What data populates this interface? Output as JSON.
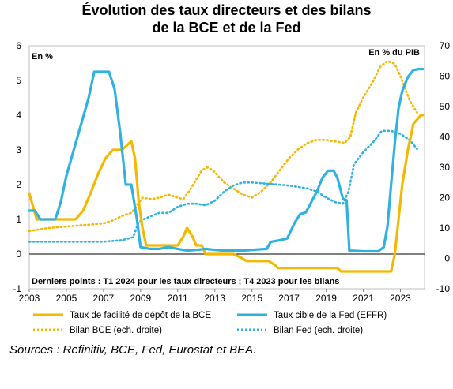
{
  "chart_data": {
    "type": "line",
    "title_line1": "Évolution des taux directeurs et des bilans",
    "title_line2": "de la BCE et de la Fed",
    "left_unit": "En %",
    "right_unit": "En % du PIB",
    "note": "Derniers points : T1 2024 pour les taux directeurs ; T4 2023 pour les bilans",
    "xlim": [
      2003,
      2024.3
    ],
    "ylim_left": [
      -1,
      6
    ],
    "ylim_right": [
      -10,
      70
    ],
    "x_ticks": [
      "2003",
      "2005",
      "2007",
      "2009",
      "2011",
      "2013",
      "2015",
      "2017",
      "2019",
      "2021",
      "2023"
    ],
    "y_left_ticks": [
      "-1",
      "0",
      "1",
      "2",
      "3",
      "4",
      "5",
      "6"
    ],
    "y_right_ticks": [
      "-10",
      "0",
      "10",
      "20",
      "30",
      "40",
      "50",
      "60",
      "70"
    ],
    "grid": false,
    "legend_position": "bottom",
    "series": [
      {
        "name": "Taux de facilité de dépôt de la BCE",
        "axis": "left",
        "style": "solid",
        "color": "#F5B800",
        "points": [
          [
            2003.0,
            1.75
          ],
          [
            2003.4,
            1.0
          ],
          [
            2004.5,
            1.0
          ],
          [
            2005.5,
            1.0
          ],
          [
            2005.9,
            1.25
          ],
          [
            2006.3,
            1.75
          ],
          [
            2006.7,
            2.3
          ],
          [
            2007.1,
            2.75
          ],
          [
            2007.5,
            3.0
          ],
          [
            2008.0,
            3.0
          ],
          [
            2008.5,
            3.25
          ],
          [
            2008.7,
            2.75
          ],
          [
            2008.9,
            1.5
          ],
          [
            2009.1,
            0.75
          ],
          [
            2009.3,
            0.25
          ],
          [
            2010.0,
            0.25
          ],
          [
            2011.0,
            0.25
          ],
          [
            2011.3,
            0.5
          ],
          [
            2011.5,
            0.75
          ],
          [
            2011.8,
            0.5
          ],
          [
            2012.0,
            0.25
          ],
          [
            2012.3,
            0.25
          ],
          [
            2012.5,
            0.0
          ],
          [
            2014.0,
            0.0
          ],
          [
            2014.4,
            -0.1
          ],
          [
            2014.7,
            -0.2
          ],
          [
            2015.9,
            -0.2
          ],
          [
            2016.2,
            -0.3
          ],
          [
            2016.4,
            -0.4
          ],
          [
            2019.6,
            -0.4
          ],
          [
            2019.8,
            -0.5
          ],
          [
            2022.5,
            -0.5
          ],
          [
            2022.7,
            0.0
          ],
          [
            2022.9,
            1.0
          ],
          [
            2023.1,
            2.0
          ],
          [
            2023.4,
            3.0
          ],
          [
            2023.7,
            3.75
          ],
          [
            2024.1,
            4.0
          ],
          [
            2024.2,
            4.0
          ]
        ]
      },
      {
        "name": "Taux cible de la Fed (EFFR)",
        "axis": "left",
        "style": "solid",
        "color": "#2FB2E2",
        "points": [
          [
            2003.0,
            1.25
          ],
          [
            2003.3,
            1.25
          ],
          [
            2003.6,
            1.0
          ],
          [
            2004.4,
            1.0
          ],
          [
            2004.7,
            1.5
          ],
          [
            2005.0,
            2.25
          ],
          [
            2005.4,
            3.0
          ],
          [
            2005.8,
            3.75
          ],
          [
            2006.2,
            4.5
          ],
          [
            2006.5,
            5.25
          ],
          [
            2007.3,
            5.25
          ],
          [
            2007.6,
            4.75
          ],
          [
            2007.9,
            3.5
          ],
          [
            2008.2,
            2.0
          ],
          [
            2008.5,
            2.0
          ],
          [
            2008.8,
            1.0
          ],
          [
            2009.0,
            0.2
          ],
          [
            2009.5,
            0.15
          ],
          [
            2010.0,
            0.15
          ],
          [
            2010.5,
            0.2
          ],
          [
            2011.0,
            0.15
          ],
          [
            2011.5,
            0.1
          ],
          [
            2012.0,
            0.12
          ],
          [
            2012.5,
            0.15
          ],
          [
            2013.0,
            0.12
          ],
          [
            2013.5,
            0.1
          ],
          [
            2014.0,
            0.1
          ],
          [
            2014.5,
            0.1
          ],
          [
            2015.0,
            0.12
          ],
          [
            2015.8,
            0.15
          ],
          [
            2016.0,
            0.35
          ],
          [
            2016.5,
            0.4
          ],
          [
            2016.9,
            0.45
          ],
          [
            2017.3,
            0.9
          ],
          [
            2017.6,
            1.15
          ],
          [
            2017.9,
            1.2
          ],
          [
            2018.2,
            1.5
          ],
          [
            2018.5,
            1.8
          ],
          [
            2018.8,
            2.2
          ],
          [
            2019.1,
            2.4
          ],
          [
            2019.4,
            2.4
          ],
          [
            2019.6,
            2.2
          ],
          [
            2019.9,
            1.6
          ],
          [
            2020.1,
            1.55
          ],
          [
            2020.25,
            0.1
          ],
          [
            2021.0,
            0.08
          ],
          [
            2021.8,
            0.08
          ],
          [
            2022.1,
            0.2
          ],
          [
            2022.3,
            0.8
          ],
          [
            2022.5,
            2.0
          ],
          [
            2022.7,
            3.2
          ],
          [
            2022.9,
            4.2
          ],
          [
            2023.1,
            4.7
          ],
          [
            2023.4,
            5.1
          ],
          [
            2023.7,
            5.3
          ],
          [
            2024.0,
            5.33
          ],
          [
            2024.2,
            5.33
          ]
        ]
      },
      {
        "name": "Bilan BCE (ech. droite)",
        "axis": "right",
        "style": "dotted",
        "color": "#F5B800",
        "points": [
          [
            2003.0,
            9
          ],
          [
            2004.0,
            10
          ],
          [
            2005.0,
            10.5
          ],
          [
            2006.0,
            11
          ],
          [
            2007.0,
            11.5
          ],
          [
            2007.5,
            12.5
          ],
          [
            2008.0,
            14
          ],
          [
            2008.5,
            15
          ],
          [
            2008.8,
            17.5
          ],
          [
            2009.1,
            20
          ],
          [
            2009.6,
            19.5
          ],
          [
            2010.0,
            20
          ],
          [
            2010.5,
            21
          ],
          [
            2011.0,
            20
          ],
          [
            2011.3,
            19.5
          ],
          [
            2011.6,
            22
          ],
          [
            2012.0,
            26
          ],
          [
            2012.3,
            29
          ],
          [
            2012.6,
            30
          ],
          [
            2012.9,
            29
          ],
          [
            2013.2,
            27
          ],
          [
            2013.5,
            25
          ],
          [
            2014.0,
            23
          ],
          [
            2014.5,
            21
          ],
          [
            2015.0,
            20
          ],
          [
            2015.5,
            22
          ],
          [
            2016.0,
            25
          ],
          [
            2016.5,
            29
          ],
          [
            2017.0,
            33
          ],
          [
            2017.5,
            36
          ],
          [
            2018.0,
            38
          ],
          [
            2018.5,
            39
          ],
          [
            2019.0,
            39
          ],
          [
            2019.5,
            38.5
          ],
          [
            2020.0,
            38
          ],
          [
            2020.3,
            40
          ],
          [
            2020.6,
            48
          ],
          [
            2021.0,
            53
          ],
          [
            2021.5,
            58
          ],
          [
            2021.9,
            63
          ],
          [
            2022.3,
            65
          ],
          [
            2022.7,
            64
          ],
          [
            2023.0,
            60
          ],
          [
            2023.5,
            52
          ],
          [
            2023.9,
            48
          ]
        ]
      },
      {
        "name": "Bilan Fed (ech. droite)",
        "axis": "right",
        "style": "dotted",
        "color": "#2FB2E2",
        "points": [
          [
            2003.0,
            5.5
          ],
          [
            2004.0,
            5.5
          ],
          [
            2005.0,
            5.5
          ],
          [
            2006.0,
            5.5
          ],
          [
            2007.0,
            5.5
          ],
          [
            2008.0,
            6
          ],
          [
            2008.6,
            7
          ],
          [
            2008.9,
            12
          ],
          [
            2009.2,
            13
          ],
          [
            2009.6,
            14
          ],
          [
            2010.0,
            15
          ],
          [
            2010.5,
            15
          ],
          [
            2011.0,
            17
          ],
          [
            2011.5,
            18
          ],
          [
            2012.0,
            18
          ],
          [
            2012.5,
            17.5
          ],
          [
            2013.0,
            19
          ],
          [
            2013.5,
            22
          ],
          [
            2014.0,
            24
          ],
          [
            2014.5,
            25
          ],
          [
            2015.0,
            25
          ],
          [
            2016.0,
            24.5
          ],
          [
            2017.0,
            24
          ],
          [
            2018.0,
            23
          ],
          [
            2018.5,
            22
          ],
          [
            2019.0,
            20
          ],
          [
            2019.5,
            18.5
          ],
          [
            2019.9,
            18
          ],
          [
            2020.2,
            22
          ],
          [
            2020.5,
            31
          ],
          [
            2021.0,
            35
          ],
          [
            2021.5,
            38
          ],
          [
            2022.0,
            42
          ],
          [
            2022.5,
            42
          ],
          [
            2023.0,
            41
          ],
          [
            2023.5,
            39
          ],
          [
            2023.9,
            36
          ]
        ]
      }
    ]
  },
  "legend": {
    "ecb_rate": "Taux de facilité de dépôt de la BCE",
    "fed_rate": "Taux cible de la Fed (EFFR)",
    "ecb_balance": "Bilan BCE (ech. droite)",
    "fed_balance": "Bilan Fed (ech. droite)"
  },
  "sources": "Sources : Refinitiv, BCE, Fed, Eurostat et BEA."
}
